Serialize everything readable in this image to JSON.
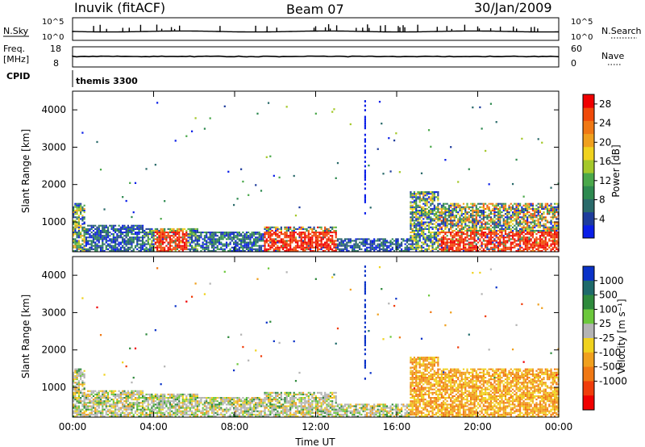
{
  "header": {
    "station": "Inuvik (fitACF)",
    "beam": "Beam 07",
    "date": "30/Jan/2009"
  },
  "strip_nsky": {
    "left_label": "N.Sky",
    "left_ticks": [
      "10^5",
      "10^0"
    ],
    "right_label": "N.Search",
    "right_ticks": [
      "10^5",
      "10^0"
    ]
  },
  "strip_freq": {
    "left_label_1": "Freq.",
    "left_label_2": "[MHz]",
    "left_ticks": [
      "18",
      "8"
    ],
    "right_label": "Nave",
    "right_ticks": [
      "60",
      "0"
    ]
  },
  "cpid": {
    "label": "CPID",
    "value": "themis 3300"
  },
  "colors": {
    "power": [
      "#0a1ee8",
      "#1e3c9c",
      "#2a6a6a",
      "#2e8a50",
      "#4aa84a",
      "#a4c82a",
      "#f0d21e",
      "#f0a01e",
      "#f07814",
      "#f04a0a",
      "#f00000"
    ],
    "velocity": [
      "#0a32c8",
      "#1e6a6a",
      "#2e8a3c",
      "#6cc83c",
      "#b4b4b4",
      "#f0d21e",
      "#f0a01e",
      "#f07814",
      "#f03c0a",
      "#f00000"
    ]
  },
  "chart_data": [
    {
      "type": "heatmap",
      "quantity": "Power",
      "xlabel": "",
      "ylabel": "Slant Range [km]",
      "xlim_hours": [
        0,
        24
      ],
      "ylim": [
        200,
        4500
      ],
      "y_ticks": [
        "1000",
        "2000",
        "3000",
        "4000"
      ],
      "colorbar_label": "Power [dB]",
      "colorbar_ticks": [
        "4",
        "8",
        "12",
        "16",
        "20",
        "24",
        "28"
      ]
    },
    {
      "type": "heatmap",
      "quantity": "Velocity",
      "xlabel": "Time UT",
      "ylabel": "Slant Range [km]",
      "xlim_hours": [
        0,
        24
      ],
      "ylim": [
        200,
        4500
      ],
      "x_ticks": [
        "00:00",
        "04:00",
        "08:00",
        "12:00",
        "16:00",
        "20:00",
        "00:00"
      ],
      "y_ticks": [
        "1000",
        "2000",
        "3000",
        "4000"
      ],
      "colorbar_label": "Velocity [m s⁻¹]",
      "colorbar_ticks": [
        "1000",
        "500",
        "100",
        "25",
        "-25",
        "-100",
        "-500",
        "-1000"
      ]
    }
  ]
}
